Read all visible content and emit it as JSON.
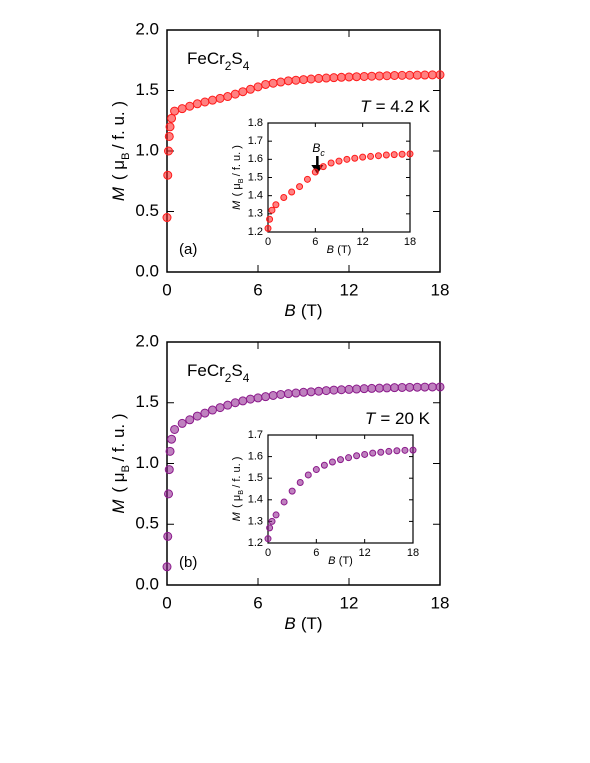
{
  "chart_data": [
    {
      "type": "scatter",
      "formula": [
        "FeCr",
        "2",
        "S",
        "4"
      ],
      "temperature": [
        "T",
        "= 4.2 K"
      ],
      "panel_label": "(a)",
      "xlabel": [
        "B",
        "(T)"
      ],
      "ylabel": [
        "M",
        "( μ",
        "B",
        "/ f. u. )"
      ],
      "color": "#ff1a1a",
      "x": [
        0,
        0.05,
        0.1,
        0.15,
        0.2,
        0.3,
        0.5,
        1,
        1.5,
        2,
        2.5,
        3,
        3.5,
        4,
        4.5,
        5,
        5.5,
        6,
        6.5,
        7,
        7.5,
        8,
        8.5,
        9,
        9.5,
        10,
        10.5,
        11,
        11.5,
        12,
        12.5,
        13,
        13.5,
        14,
        14.5,
        15,
        15.5,
        16,
        16.5,
        17,
        17.5,
        18
      ],
      "values": [
        0.45,
        0.8,
        1.0,
        1.12,
        1.2,
        1.27,
        1.33,
        1.35,
        1.37,
        1.39,
        1.405,
        1.42,
        1.435,
        1.45,
        1.47,
        1.49,
        1.51,
        1.53,
        1.55,
        1.56,
        1.57,
        1.58,
        1.585,
        1.59,
        1.595,
        1.6,
        1.603,
        1.606,
        1.609,
        1.612,
        1.614,
        1.616,
        1.618,
        1.62,
        1.622,
        1.624,
        1.625,
        1.626,
        1.627,
        1.628,
        1.629,
        1.63
      ],
      "xlim": [
        0,
        18
      ],
      "xticks": [
        0,
        6,
        12,
        18
      ],
      "ylim": [
        0,
        2
      ],
      "yticks": [
        {
          "value": 0,
          "label": "0.0"
        },
        0.5,
        {
          "value": 1,
          "label": "1.0"
        },
        1.5,
        {
          "value": 2,
          "label": "2.0"
        }
      ]
    },
    {
      "type": "scatter",
      "xlabel": [
        "B",
        "(T)"
      ],
      "ylabel": [
        "M",
        "( μ",
        "B",
        "/ f. u. )"
      ],
      "annotation": [
        "B",
        "c"
      ],
      "color": "#ff1a1a",
      "x": [
        0,
        0.2,
        0.5,
        1,
        2,
        3,
        4,
        5,
        6,
        7,
        8,
        9,
        10,
        11,
        12,
        13,
        14,
        15,
        16,
        17,
        18
      ],
      "values": [
        1.22,
        1.27,
        1.32,
        1.35,
        1.39,
        1.42,
        1.45,
        1.49,
        1.53,
        1.56,
        1.58,
        1.59,
        1.6,
        1.606,
        1.612,
        1.616,
        1.62,
        1.624,
        1.626,
        1.628,
        1.63
      ],
      "xlim": [
        0,
        18
      ],
      "xticks": [
        0,
        6,
        12,
        18
      ],
      "ylim": [
        1.2,
        1.8
      ],
      "yticks": [
        1.2,
        1.3,
        1.4,
        1.5,
        1.6,
        1.7,
        1.8
      ]
    },
    {
      "type": "scatter",
      "formula": [
        "FeCr",
        "2",
        "S",
        "4"
      ],
      "temperature": [
        "T",
        "= 20 K"
      ],
      "panel_label": "(b)",
      "xlabel": [
        "B",
        "(T)"
      ],
      "ylabel": [
        "M",
        "( μ",
        "B",
        "/ f. u. )"
      ],
      "color": "#8b1a8b",
      "x": [
        0,
        0.05,
        0.1,
        0.15,
        0.2,
        0.3,
        0.5,
        1,
        1.5,
        2,
        2.5,
        3,
        3.5,
        4,
        4.5,
        5,
        5.5,
        6,
        6.5,
        7,
        7.5,
        8,
        8.5,
        9,
        9.5,
        10,
        10.5,
        11,
        11.5,
        12,
        12.5,
        13,
        13.5,
        14,
        14.5,
        15,
        15.5,
        16,
        16.5,
        17,
        17.5,
        18
      ],
      "values": [
        0.15,
        0.4,
        0.75,
        0.95,
        1.1,
        1.2,
        1.28,
        1.33,
        1.36,
        1.39,
        1.415,
        1.44,
        1.46,
        1.48,
        1.5,
        1.515,
        1.53,
        1.54,
        1.55,
        1.56,
        1.568,
        1.575,
        1.58,
        1.586,
        1.59,
        1.595,
        1.6,
        1.604,
        1.607,
        1.61,
        1.613,
        1.616,
        1.618,
        1.62,
        1.622,
        1.624,
        1.626,
        1.627,
        1.628,
        1.629,
        1.63,
        1.63
      ],
      "xlim": [
        0,
        18
      ],
      "xticks": [
        0,
        6,
        12,
        18
      ],
      "ylim": [
        0,
        2
      ],
      "yticks": [
        {
          "value": 0,
          "label": "0.0"
        },
        0.5,
        {
          "value": 1,
          "label": "1.0"
        },
        1.5,
        {
          "value": 2,
          "label": "2.0"
        }
      ]
    },
    {
      "type": "scatter",
      "xlabel": [
        "B",
        "(T)"
      ],
      "ylabel": [
        "M",
        "( μ",
        "B",
        "/ f. u. )"
      ],
      "color": "#8b1a8b",
      "x": [
        0,
        0.2,
        0.5,
        1,
        2,
        3,
        4,
        5,
        6,
        7,
        8,
        9,
        10,
        11,
        12,
        13,
        14,
        15,
        16,
        17,
        18
      ],
      "values": [
        1.22,
        1.27,
        1.3,
        1.33,
        1.39,
        1.44,
        1.48,
        1.515,
        1.54,
        1.56,
        1.575,
        1.586,
        1.595,
        1.604,
        1.61,
        1.616,
        1.62,
        1.624,
        1.627,
        1.629,
        1.63
      ],
      "xlim": [
        0,
        18
      ],
      "xticks": [
        0,
        6,
        12,
        18
      ],
      "ylim": [
        1.2,
        1.7
      ],
      "yticks": [
        1.2,
        1.3,
        1.4,
        1.5,
        1.6,
        1.7
      ]
    }
  ]
}
